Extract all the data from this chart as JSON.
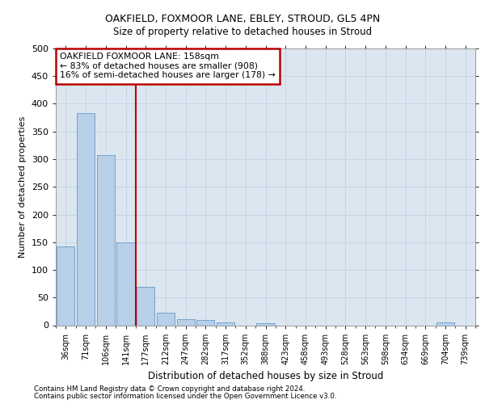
{
  "title1": "OAKFIELD, FOXMOOR LANE, EBLEY, STROUD, GL5 4PN",
  "title2": "Size of property relative to detached houses in Stroud",
  "xlabel": "Distribution of detached houses by size in Stroud",
  "ylabel": "Number of detached properties",
  "footer1": "Contains HM Land Registry data © Crown copyright and database right 2024.",
  "footer2": "Contains public sector information licensed under the Open Government Licence v3.0.",
  "bin_labels": [
    "36sqm",
    "71sqm",
    "106sqm",
    "141sqm",
    "177sqm",
    "212sqm",
    "247sqm",
    "282sqm",
    "317sqm",
    "352sqm",
    "388sqm",
    "423sqm",
    "458sqm",
    "493sqm",
    "528sqm",
    "563sqm",
    "598sqm",
    "634sqm",
    "669sqm",
    "704sqm",
    "739sqm"
  ],
  "values": [
    143,
    383,
    308,
    150,
    70,
    22,
    11,
    9,
    5,
    0,
    4,
    0,
    0,
    0,
    0,
    0,
    0,
    0,
    0,
    5,
    0
  ],
  "bar_color": "#b8cfe8",
  "bar_edge_color": "#6699cc",
  "annotation_box_text": "OAKFIELD FOXMOOR LANE: 158sqm\n← 83% of detached houses are smaller (908)\n16% of semi-detached houses are larger (178) →",
  "annotation_box_color": "#ffffff",
  "annotation_box_edge_color": "#bb0000",
  "red_line_color": "#bb0000",
  "grid_color": "#c8d4e4",
  "background_color": "#dce6f0",
  "ylim": [
    0,
    500
  ],
  "yticks": [
    0,
    50,
    100,
    150,
    200,
    250,
    300,
    350,
    400,
    450,
    500
  ]
}
